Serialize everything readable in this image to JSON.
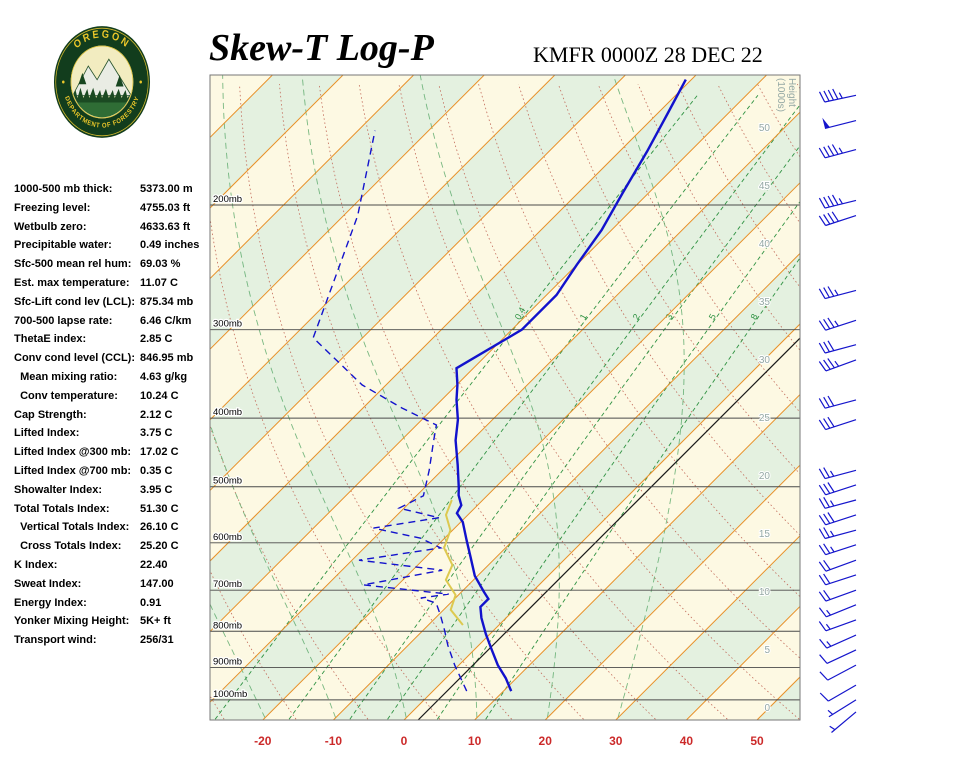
{
  "header": {
    "title": "Skew-T Log-P",
    "station": "KMFR 0000Z 28 DEC 22",
    "logo": {
      "arc_top": "OREGON",
      "arc_bottom": "DEPARTMENT OF FORESTRY"
    }
  },
  "indices": [
    {
      "label": "1000-500 mb thick:",
      "value": "5373.00 m"
    },
    {
      "label": "Freezing level:",
      "value": "4755.03 ft"
    },
    {
      "label": "Wetbulb zero:",
      "value": "4633.63 ft"
    },
    {
      "label": "Precipitable water:",
      "value": "0.49 inches"
    },
    {
      "label": "Sfc-500 mean rel hum:",
      "value": "69.03 %"
    },
    {
      "label": "Est. max temperature:",
      "value": "11.07 C"
    },
    {
      "label": "Sfc-Lift cond lev (LCL):",
      "value": "875.34 mb"
    },
    {
      "label": "700-500 lapse rate:",
      "value": "6.46 C/km"
    },
    {
      "label": "ThetaE index:",
      "value": "2.85 C"
    },
    {
      "label": "Conv cond level (CCL):",
      "value": "846.95 mb"
    },
    {
      "label": "  Mean mixing ratio:",
      "value": "4.63 g/kg"
    },
    {
      "label": "  Conv temperature:",
      "value": "10.24 C"
    },
    {
      "label": "Cap Strength:",
      "value": "2.12 C"
    },
    {
      "label": "Lifted Index:",
      "value": "3.75 C"
    },
    {
      "label": "Lifted Index @300 mb:",
      "value": "17.02 C"
    },
    {
      "label": "Lifted Index @700 mb:",
      "value": "0.35 C"
    },
    {
      "label": "Showalter Index:",
      "value": "3.95 C"
    },
    {
      "label": "Total Totals Index:",
      "value": "51.30 C"
    },
    {
      "label": "  Vertical Totals Index:",
      "value": "26.10 C"
    },
    {
      "label": "  Cross Totals Index:",
      "value": "25.20 C"
    },
    {
      "label": "K Index:",
      "value": "22.40"
    },
    {
      "label": "Sweat Index:",
      "value": "147.00"
    },
    {
      "label": "Energy Index:",
      "value": "0.91"
    },
    {
      "label": "Yonker Mixing Height:",
      "value": "5K+ ft"
    },
    {
      "label": "Transport wind:",
      "value": "256/31"
    }
  ],
  "chart_data": {
    "type": "skewt-log-p",
    "title": "Skew-T Log-P",
    "station_line": "KMFR 0000Z 28 DEC 22",
    "pressure_lines_mb": [
      200,
      300,
      400,
      500,
      600,
      700,
      800,
      900,
      1000
    ],
    "pressure_range_mb": [
      131,
      1066
    ],
    "temp_ticks_c": [
      -20,
      -10,
      0,
      10,
      20,
      30,
      40,
      50
    ],
    "temp_axis_range_c": [
      -140,
      60
    ],
    "isotherm_step_c": 10,
    "skew_deg": 45,
    "grid": "on",
    "height_axis_label": [
      "Height",
      "(1000s)"
    ],
    "height_ticks_kft": [
      0,
      5,
      10,
      15,
      20,
      25,
      30,
      35,
      40,
      45,
      50
    ],
    "mixing_ratio_gkg": [
      0.4,
      1,
      2,
      3,
      5,
      8
    ],
    "reference_isotherm_c": 2,
    "temperature_profile": [
      [
        972,
        11.1
      ],
      [
        932,
        8.5
      ],
      [
        893,
        5.5
      ],
      [
        850,
        2.5
      ],
      [
        807,
        -0.6
      ],
      [
        766,
        -3.5
      ],
      [
        739,
        -5.2
      ],
      [
        720,
        -5.2
      ],
      [
        704,
        -6.8
      ],
      [
        668,
        -10.4
      ],
      [
        628,
        -13.7
      ],
      [
        595,
        -16.6
      ],
      [
        561,
        -19.7
      ],
      [
        545,
        -21.8
      ],
      [
        531,
        -22.3
      ],
      [
        514,
        -24.1
      ],
      [
        502,
        -25.1
      ],
      [
        466,
        -28.5
      ],
      [
        430,
        -32.3
      ],
      [
        402,
        -34.9
      ],
      [
        377,
        -37.9
      ],
      [
        359,
        -39.9
      ],
      [
        340,
        -42.4
      ],
      [
        300,
        -38.6
      ],
      [
        268,
        -38.6
      ],
      [
        243,
        -40.0
      ],
      [
        217,
        -41.4
      ],
      [
        192,
        -43.7
      ],
      [
        168,
        -46.1
      ],
      [
        149,
        -48.5
      ],
      [
        133,
        -50.8
      ]
    ],
    "dewpoint_profile": [
      [
        972,
        4.8
      ],
      [
        893,
        -0.6
      ],
      [
        837,
        -4.4
      ],
      [
        797,
        -7.0
      ],
      [
        759,
        -9.7
      ],
      [
        730,
        -12.0
      ],
      [
        718,
        -14.9
      ],
      [
        709,
        -11.5
      ],
      [
        688,
        -24.9
      ],
      [
        656,
        -15.8
      ],
      [
        635,
        -29.0
      ],
      [
        610,
        -19.2
      ],
      [
        591,
        -23.4
      ],
      [
        572,
        -31.5
      ],
      [
        553,
        -23.7
      ],
      [
        536,
        -30.7
      ],
      [
        515,
        -29.0
      ],
      [
        474,
        -31.8
      ],
      [
        430,
        -35.4
      ],
      [
        409,
        -37.2
      ],
      [
        387,
        -44.5
      ],
      [
        359,
        -53.4
      ],
      [
        308,
        -67.0
      ],
      [
        247,
        -73.1
      ],
      [
        207,
        -78.0
      ],
      [
        157,
        -87.6
      ]
    ],
    "parcel_profile": [
      [
        784,
        -5.1
      ],
      [
        746,
        -9.0
      ],
      [
        711,
        -10.4
      ],
      [
        677,
        -13.9
      ],
      [
        645,
        -15.1
      ],
      [
        610,
        -18.7
      ],
      [
        576,
        -20.3
      ],
      [
        548,
        -23.1
      ],
      [
        522,
        -24.4
      ]
    ],
    "wind_barbs": [
      {
        "p": 140,
        "dir": 258,
        "spd": 45
      },
      {
        "p": 152,
        "dir": 256,
        "spd": 50
      },
      {
        "p": 167,
        "dir": 255,
        "spd": 45
      },
      {
        "p": 197,
        "dir": 256,
        "spd": 45
      },
      {
        "p": 207,
        "dir": 252,
        "spd": 40
      },
      {
        "p": 264,
        "dir": 255,
        "spd": 35
      },
      {
        "p": 291,
        "dir": 252,
        "spd": 35
      },
      {
        "p": 315,
        "dir": 255,
        "spd": 30
      },
      {
        "p": 331,
        "dir": 250,
        "spd": 35
      },
      {
        "p": 377,
        "dir": 255,
        "spd": 30
      },
      {
        "p": 402,
        "dir": 252,
        "spd": 30
      },
      {
        "p": 474,
        "dir": 255,
        "spd": 25
      },
      {
        "p": 497,
        "dir": 252,
        "spd": 30
      },
      {
        "p": 522,
        "dir": 255,
        "spd": 25
      },
      {
        "p": 548,
        "dir": 252,
        "spd": 30
      },
      {
        "p": 576,
        "dir": 255,
        "spd": 25
      },
      {
        "p": 604,
        "dir": 252,
        "spd": 25
      },
      {
        "p": 635,
        "dir": 250,
        "spd": 20
      },
      {
        "p": 666,
        "dir": 252,
        "spd": 20
      },
      {
        "p": 700,
        "dir": 250,
        "spd": 20
      },
      {
        "p": 734,
        "dir": 248,
        "spd": 15
      },
      {
        "p": 771,
        "dir": 250,
        "spd": 15
      },
      {
        "p": 810,
        "dir": 246,
        "spd": 15
      },
      {
        "p": 850,
        "dir": 245,
        "spd": 10
      },
      {
        "p": 893,
        "dir": 242,
        "spd": 10
      },
      {
        "p": 953,
        "dir": 240,
        "spd": 10
      },
      {
        "p": 1000,
        "dir": 238,
        "spd": 5
      },
      {
        "p": 1040,
        "dir": 230,
        "spd": 5
      }
    ],
    "colors": {
      "band_cream": "#fdf9e3",
      "band_green": "#e4f1e0",
      "isotherm": "#e89028",
      "dry_adiabat": "#c26b5a",
      "moist_adiabat": "#58a868",
      "mixing_ratio": "#2f9242",
      "pressure_line": "#4a4a4a",
      "trace_blue": "#1212cc",
      "parcel_yellow": "#ddc94f",
      "wind_barb": "#1515cc",
      "axis_red": "#cc2a2a",
      "height_gray": "#94a8a4",
      "reference_black": "#1a1a1a"
    }
  }
}
